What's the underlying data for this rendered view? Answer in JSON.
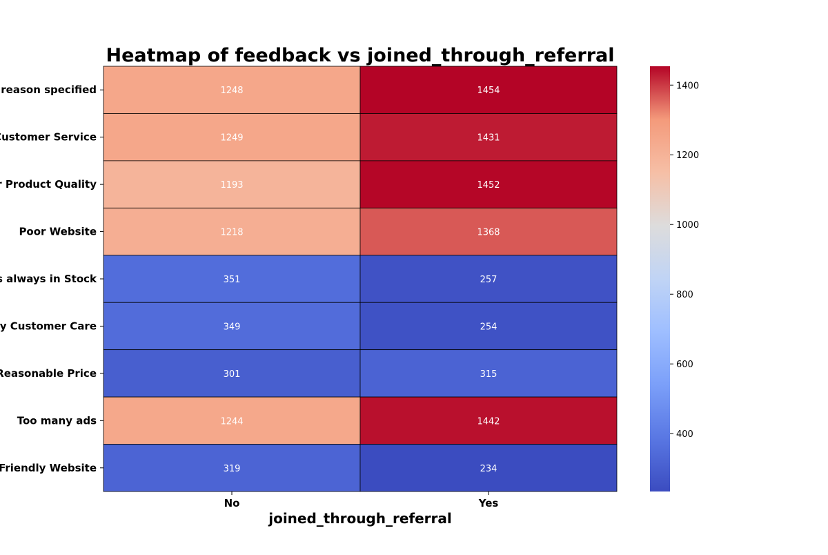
{
  "chart_data": {
    "type": "heatmap",
    "title": "Heatmap of feedback vs joined_through_referral",
    "xlabel": "joined_through_referral",
    "ylabel": "",
    "x_categories": [
      "No",
      "Yes"
    ],
    "y_categories": [
      "No reason specified",
      "Poor Customer Service",
      "Poor Product Quality",
      "Poor Website",
      "Products always in Stock",
      "Quality Customer Care",
      "Reasonable Price",
      "Too many ads",
      "User Friendly Website"
    ],
    "values": [
      [
        1248,
        1454
      ],
      [
        1249,
        1431
      ],
      [
        1193,
        1452
      ],
      [
        1218,
        1368
      ],
      [
        351,
        257
      ],
      [
        349,
        254
      ],
      [
        301,
        315
      ],
      [
        1244,
        1442
      ],
      [
        319,
        234
      ]
    ],
    "colormap": "coolwarm",
    "color_range": [
      234,
      1454
    ],
    "colorbar_ticks": [
      400,
      600,
      800,
      1000,
      1200,
      1400
    ],
    "annotations_shown": true,
    "cell_border_color": "#000000"
  }
}
